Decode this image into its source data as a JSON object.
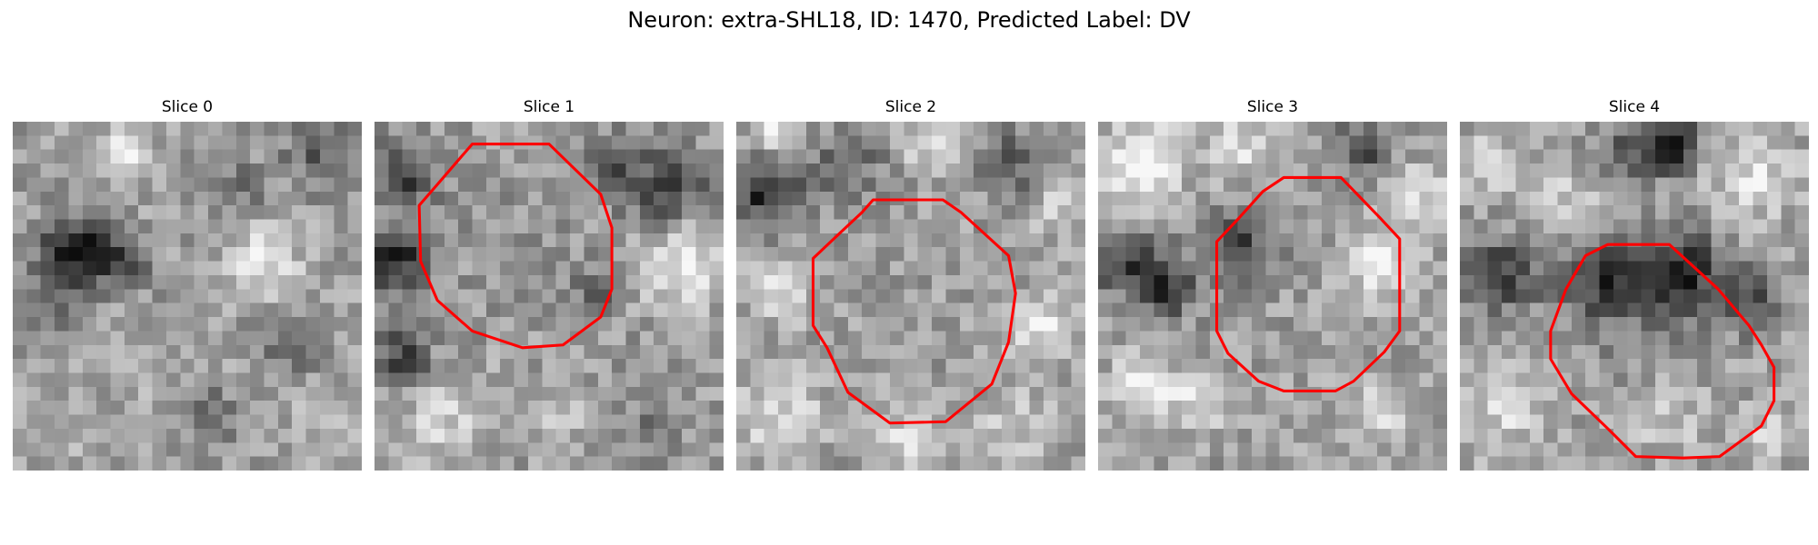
{
  "figure": {
    "title": "Neuron: extra-SHL18, ID: 1470, Predicted Label: DV",
    "contour_color": "#ff0000",
    "colormap": "gray",
    "panels": [
      {
        "title": "Slice 0",
        "has_contour": false
      },
      {
        "title": "Slice 1",
        "has_contour": true
      },
      {
        "title": "Slice 2",
        "has_contour": true
      },
      {
        "title": "Slice 3",
        "has_contour": true
      },
      {
        "title": "Slice 4",
        "has_contour": true
      }
    ]
  }
}
